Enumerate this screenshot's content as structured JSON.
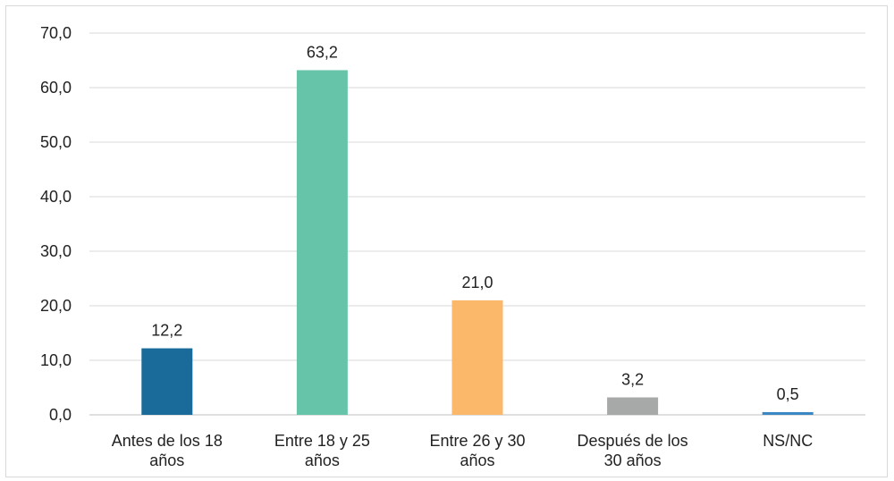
{
  "chart_data": {
    "type": "bar",
    "title": "",
    "xlabel": "",
    "ylabel": "",
    "categories": [
      [
        "Antes de los 18",
        "años"
      ],
      [
        "Entre 18 y 25",
        "años"
      ],
      [
        "Entre 26 y 30",
        "años"
      ],
      [
        "Después de los",
        "30 años"
      ],
      [
        "NS/NC"
      ]
    ],
    "values": [
      12.2,
      63.2,
      21.0,
      3.2,
      0.5
    ],
    "value_labels": [
      "12,2",
      "63,2",
      "21,0",
      "3,2",
      "0,5"
    ],
    "colors": [
      "#1a6b9a",
      "#66c5a9",
      "#fbb86a",
      "#a7a9a8",
      "#3a87c4"
    ],
    "ylim": [
      0,
      70
    ],
    "yticks": [
      0,
      10,
      20,
      30,
      40,
      50,
      60,
      70
    ],
    "ytick_labels": [
      "0,0",
      "10,0",
      "20,0",
      "30,0",
      "40,0",
      "50,0",
      "60,0",
      "70,0"
    ],
    "grid": true,
    "legend": "none"
  }
}
